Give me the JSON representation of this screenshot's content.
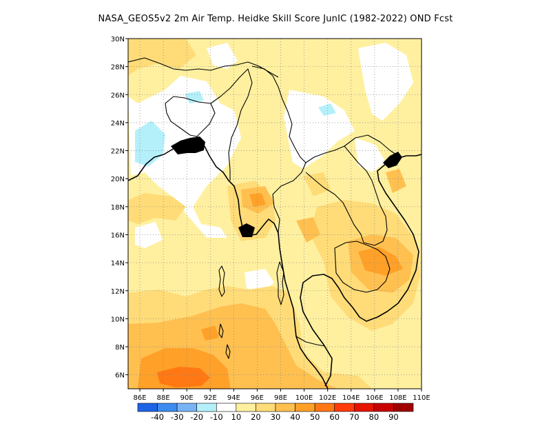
{
  "title": "NASA_GEOS5v2  2m Air Temp. Heidke Skill Score JunIC (1982-2022) OND Fcst",
  "map": {
    "lon_range": [
      85,
      110
    ],
    "lat_range": [
      5,
      30
    ],
    "x_ticks": [
      "86E",
      "88E",
      "90E",
      "92E",
      "94E",
      "96E",
      "98E",
      "100E",
      "102E",
      "104E",
      "106E",
      "108E",
      "110E"
    ],
    "y_ticks": [
      "6N",
      "8N",
      "10N",
      "12N",
      "14N",
      "16N",
      "18N",
      "20N",
      "22N",
      "24N",
      "26N",
      "28N",
      "30N"
    ],
    "grid": "dotted"
  },
  "colorbar": {
    "colors": [
      "#1e64e6",
      "#3c8cf0",
      "#78b4f5",
      "#b4f0fa",
      "#ffffff",
      "#fff0a0",
      "#ffdc78",
      "#ffc050",
      "#ffa028",
      "#ff7814",
      "#ff3c0a",
      "#e61400",
      "#c80000",
      "#a00000"
    ],
    "labels": [
      "-40",
      "-30",
      "-20",
      "-10",
      "10",
      "20",
      "30",
      "40",
      "50",
      "60",
      "70",
      "80",
      "90"
    ]
  },
  "colors": {
    "light_yellow": "#fff0a0",
    "yellow": "#ffdc78",
    "light_orange": "#ffc050",
    "orange": "#ffa028",
    "deep_orange": "#ff7814",
    "light_blue": "#b4f0fa"
  }
}
